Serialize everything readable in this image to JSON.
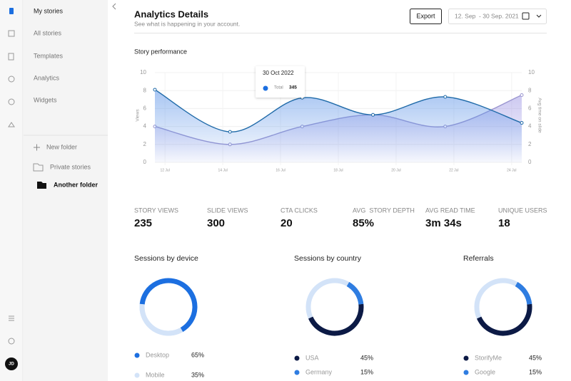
{
  "sidebar": {
    "menu": [
      "My stories",
      "All stories",
      "Templates",
      "Analytics",
      "Widgets"
    ],
    "new_folder": "New folder",
    "folders": [
      "Private stories",
      "Another folder"
    ],
    "avatar": "JD"
  },
  "header": {
    "title": "Analytics Details",
    "subtitle": "See what is happening in your account.",
    "export": "Export",
    "date_range": "12. Sep  - 30 Sep. 2021"
  },
  "stats": [
    {
      "label": "STORY VIEWS",
      "value": "235"
    },
    {
      "label": "SLIDE VIEWS",
      "value": "300"
    },
    {
      "label": "CTA CLICKS",
      "value": "20"
    },
    {
      "label": "AVG  STORY DEPTH",
      "value": "85%"
    },
    {
      "label": "AVG READ TIME",
      "value": "3m 34s"
    },
    {
      "label": "UNIQUE USERS",
      "value": "18"
    }
  ],
  "tooltip": {
    "title": "30 Oct 2022",
    "value": 345
  },
  "chart_data": [
    {
      "type": "line",
      "title": "Story performance",
      "ylabel": "Views",
      "y2label": "Avg time on slide",
      "x": [
        11.65,
        14.25,
        16.75,
        19.2,
        21.7,
        24.35
      ],
      "xlim": [
        11.65,
        24.35
      ],
      "xticks": [
        {
          "value": 12,
          "label": "12 Jul"
        },
        {
          "value": 14,
          "label": "14 Jul"
        },
        {
          "value": 16,
          "label": "16 Jul"
        },
        {
          "value": 18,
          "label": "18 Jul"
        },
        {
          "value": 20,
          "label": "20 Jul"
        },
        {
          "value": 22,
          "label": "22 Jul"
        },
        {
          "value": 24,
          "label": "24 Jul"
        }
      ],
      "ylim": [
        0,
        10
      ],
      "yticks": [
        0,
        2,
        4,
        6,
        8,
        10
      ],
      "y2lim": [
        0,
        10
      ],
      "y2ticks": [
        0,
        2,
        4,
        6,
        8,
        10
      ],
      "grid": true,
      "series": [
        {
          "name": "Total",
          "color": "#1f6aa8",
          "values": [
            8.1,
            3.4,
            7.2,
            5.3,
            7.3,
            4.4
          ]
        },
        {
          "color": "#9a95cf",
          "axis": "y2",
          "values": [
            4,
            2,
            4,
            5.3,
            4,
            7.5
          ]
        }
      ]
    },
    {
      "type": "donut",
      "title": "Sessions by device",
      "categories": [
        "Desktop",
        "Mobile"
      ],
      "values": [
        65,
        35
      ],
      "value_labels": [
        "65%",
        "35%"
      ],
      "colors": [
        "#1c6fe0",
        "#d3e3f8"
      ]
    },
    {
      "type": "donut",
      "title": "Sessions by country",
      "categories": [
        "USA",
        "Germany"
      ],
      "values": [
        45,
        15
      ],
      "value_labels": [
        "45%",
        "15%"
      ],
      "colors": [
        "#0c1a45",
        "#2f7de1"
      ]
    },
    {
      "type": "donut",
      "title": "Referrals",
      "categories": [
        "StorifyMe",
        "Google"
      ],
      "values": [
        45,
        15
      ],
      "value_labels": [
        "45%",
        "15%"
      ],
      "colors": [
        "#0c1a45",
        "#2f7de1"
      ]
    }
  ]
}
